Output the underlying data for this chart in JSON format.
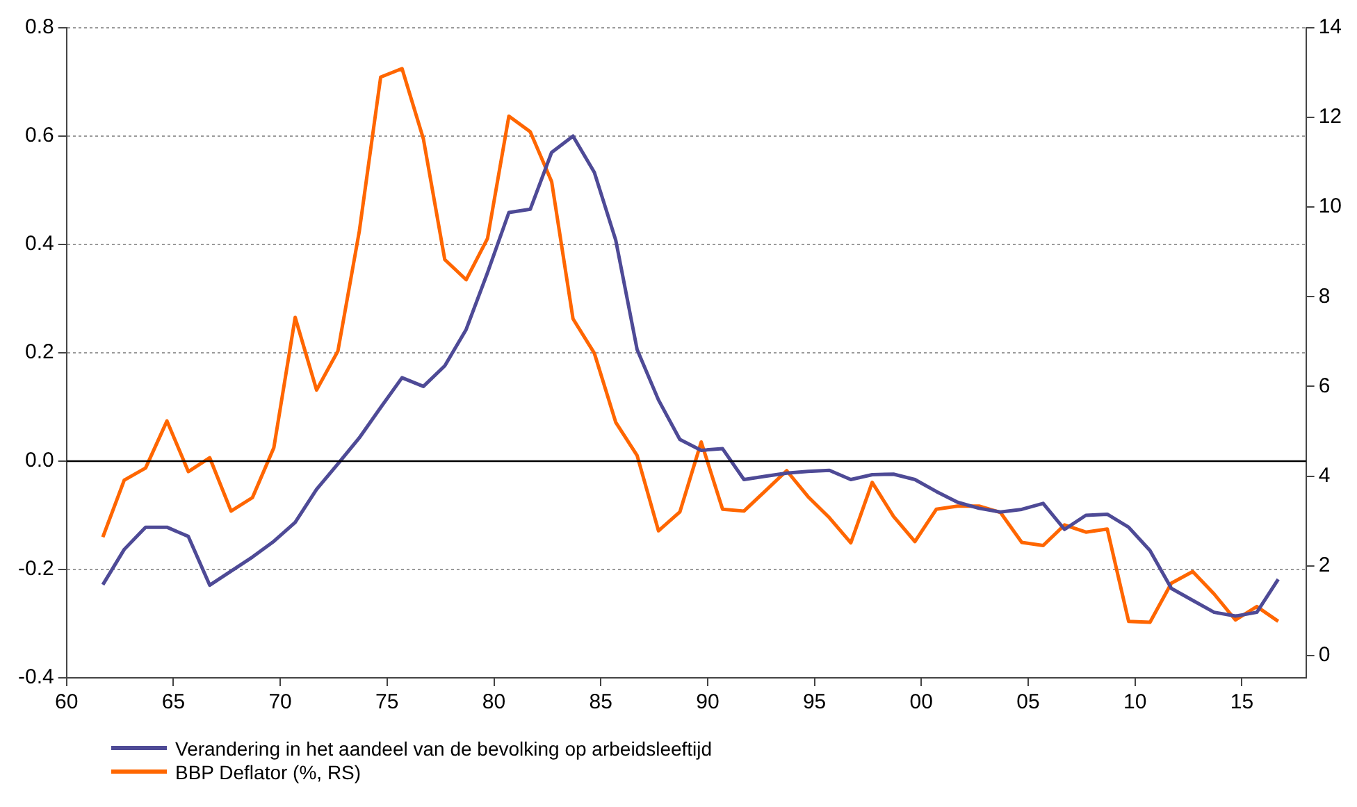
{
  "chart_data": {
    "type": "line",
    "x": [
      1961.7,
      1962.7,
      1963.7,
      1964.7,
      1965.7,
      1966.7,
      1967.7,
      1968.7,
      1969.7,
      1970.7,
      1971.7,
      1972.7,
      1973.7,
      1974.7,
      1975.7,
      1976.7,
      1977.7,
      1978.7,
      1979.7,
      1980.7,
      1981.7,
      1982.7,
      1983.7,
      1984.7,
      1985.7,
      1986.7,
      1987.7,
      1988.7,
      1989.7,
      1990.7,
      1991.7,
      1992.7,
      1993.7,
      1994.7,
      1995.7,
      1996.7,
      1997.7,
      1998.7,
      1999.7,
      2000.7,
      2001.7,
      2002.7,
      2003.7,
      2004.7,
      2005.7,
      2006.7,
      2007.7,
      2008.7,
      2009.7,
      2010.7,
      2011.7,
      2012.7,
      2013.7,
      2014.7,
      2015.7,
      2016.7
    ],
    "series": [
      {
        "name": "Verandering in het aandeel van de bevolking op arbeidsleeftijd",
        "color": "#4e4a96",
        "values": [
          -0.228,
          -0.163,
          -0.122,
          -0.122,
          -0.139,
          -0.229,
          -0.203,
          -0.177,
          -0.148,
          -0.113,
          -0.052,
          -0.005,
          0.043,
          0.099,
          0.154,
          0.138,
          0.176,
          0.243,
          0.348,
          0.459,
          0.465,
          0.57,
          0.6,
          0.533,
          0.408,
          0.206,
          0.113,
          0.04,
          0.02,
          0.023,
          -0.034,
          -0.028,
          -0.022,
          -0.019,
          -0.017,
          -0.034,
          -0.025,
          -0.024,
          -0.034,
          -0.056,
          -0.076,
          -0.087,
          -0.094,
          -0.089,
          -0.078,
          -0.126,
          -0.1,
          -0.098,
          -0.122,
          -0.165,
          -0.235,
          -0.257,
          -0.279,
          -0.286,
          -0.279,
          -0.218
        ]
      },
      {
        "name": "BBP Deflator (%, RS)",
        "color": "#ff6600",
        "axis": "y2",
        "values": [
          2.64,
          3.91,
          4.18,
          5.23,
          4.1,
          4.41,
          3.22,
          3.52,
          4.63,
          7.54,
          5.92,
          6.79,
          9.46,
          12.9,
          13.09,
          11.52,
          8.83,
          8.38,
          9.3,
          12.03,
          11.68,
          10.57,
          7.51,
          6.74,
          5.2,
          4.46,
          2.78,
          3.2,
          4.76,
          3.26,
          3.22,
          3.67,
          4.12,
          3.54,
          3.07,
          2.51,
          3.86,
          3.1,
          2.54,
          3.26,
          3.33,
          3.33,
          3.19,
          2.52,
          2.45,
          2.91,
          2.75,
          2.82,
          0.76,
          0.74,
          1.61,
          1.87,
          1.37,
          0.79,
          1.09,
          0.76
        ]
      }
    ],
    "xlim": [
      1960,
      2018
    ],
    "xticks": [
      {
        "value": 1960,
        "label": "60"
      },
      {
        "value": 1965,
        "label": "65"
      },
      {
        "value": 1970,
        "label": "70"
      },
      {
        "value": 1975,
        "label": "75"
      },
      {
        "value": 1980,
        "label": "80"
      },
      {
        "value": 1985,
        "label": "85"
      },
      {
        "value": 1990,
        "label": "90"
      },
      {
        "value": 1995,
        "label": "95"
      },
      {
        "value": 2000,
        "label": "00"
      },
      {
        "value": 2005,
        "label": "05"
      },
      {
        "value": 2010,
        "label": "10"
      },
      {
        "value": 2015,
        "label": "15"
      }
    ],
    "ylim": [
      -0.4,
      0.8
    ],
    "yticks": [
      -0.4,
      -0.2,
      {
        "value": 0,
        "label": "0.0"
      },
      0.2,
      0.4,
      0.6,
      0.8
    ],
    "y2lim": [
      -0.5,
      14
    ],
    "y2ticks": [
      0,
      2,
      4,
      6,
      8,
      10,
      12,
      14
    ],
    "ref_lines": [
      {
        "axis": "y",
        "value": 0,
        "color": "#000000"
      }
    ],
    "grid": "y",
    "legend": "bottom",
    "marker": "none",
    "line_style": "solid"
  }
}
